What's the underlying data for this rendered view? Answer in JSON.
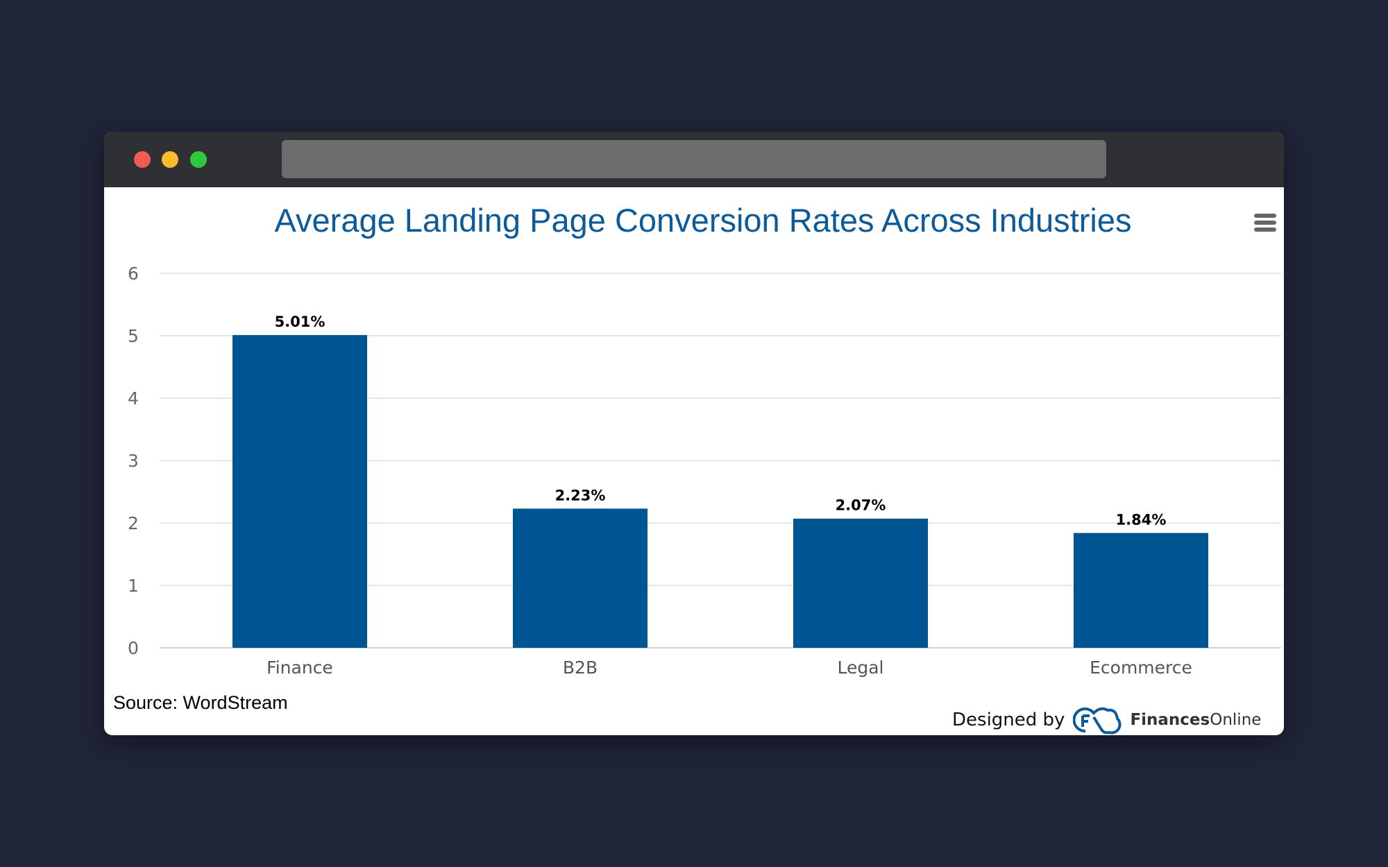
{
  "window": {
    "traffic_lights": [
      "#f25b55",
      "#fbbb2e",
      "#2ec940"
    ]
  },
  "menu_icon": "hamburger-menu-icon",
  "footer": {
    "source": "Source: WordStream",
    "designed_by": "Designed by",
    "brand_bold": "Finances",
    "brand_light": "Online"
  },
  "chart_data": {
    "type": "bar",
    "title": "Average Landing Page Conversion Rates Across Industries",
    "categories": [
      "Finance",
      "B2B",
      "Legal",
      "Ecommerce"
    ],
    "values": [
      5.01,
      2.23,
      2.07,
      1.84
    ],
    "data_labels": [
      "5.01%",
      "2.23%",
      "2.07%",
      "1.84%"
    ],
    "xlabel": "",
    "ylabel": "",
    "ylim": [
      0,
      6
    ],
    "yticks": [
      "0",
      "1",
      "2",
      "3",
      "4",
      "5",
      "6"
    ],
    "grid": true,
    "bar_color": "#005592"
  }
}
